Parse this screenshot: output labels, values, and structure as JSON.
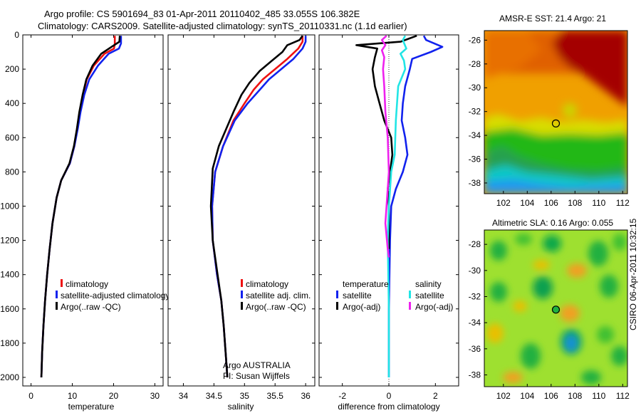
{
  "title_line1": "Argo profile: CS 5901694_83 01-Apr-2011 20110402_485 33.055S 106.382E",
  "title_line2": "Climatology: CARS2009. Satellite-adjusted climatology: synTS_20110331.nc (1.1d earlier)",
  "side_label": "CSIRO 06-Apr-2011 10:32:15",
  "colors": {
    "climatology": "#ee1111",
    "satellite": "#1122ee",
    "argo": "#000000",
    "sal_satellite": "#22e5e5",
    "sal_argo": "#ee22ee"
  },
  "chart_data": [
    {
      "id": "temperature",
      "type": "line",
      "xlabel": "temperature",
      "ylabel": "",
      "xlim": [
        -2,
        32
      ],
      "ylim": [
        2050,
        0
      ],
      "xticks": [
        0,
        10,
        20,
        30
      ],
      "yticks": [
        0,
        200,
        400,
        600,
        800,
        1000,
        1200,
        1400,
        1600,
        1800,
        2000
      ],
      "legend": [
        "climatology",
        "satellite-adjusted climatology",
        "Argo(..raw -QC)"
      ],
      "series": [
        {
          "name": "climatology",
          "color_key": "climatology",
          "x": [
            20.3,
            20.3,
            20.1,
            17.8,
            15.2,
            13.5,
            12.6,
            11.9,
            11.2,
            10.5,
            9.4,
            7.3,
            6.2,
            5.2,
            4.5,
            3.9,
            3.4,
            3.0,
            2.7,
            2.5
          ],
          "y": [
            5,
            50,
            80,
            110,
            180,
            260,
            350,
            450,
            550,
            650,
            750,
            850,
            950,
            1100,
            1250,
            1400,
            1550,
            1700,
            1850,
            2000
          ]
        },
        {
          "name": "satellite-adjusted climatology",
          "color_key": "satellite",
          "x": [
            21.8,
            21.8,
            21.3,
            18.8,
            16.2,
            14.1,
            12.9,
            12.0,
            11.3,
            10.5,
            9.4,
            7.3,
            6.2,
            5.2,
            4.5,
            3.9,
            3.4,
            3.0,
            2.7,
            2.5
          ],
          "y": [
            5,
            50,
            80,
            110,
            180,
            260,
            350,
            450,
            550,
            650,
            750,
            850,
            950,
            1100,
            1250,
            1400,
            1550,
            1700,
            1850,
            2000
          ]
        },
        {
          "name": "Argo(..raw -QC)",
          "color_key": "argo",
          "x": [
            21.5,
            21.4,
            19.5,
            17.0,
            14.9,
            13.4,
            12.5,
            11.7,
            11.1,
            10.4,
            9.3,
            7.3,
            6.2,
            5.2,
            4.5,
            3.9,
            3.4,
            3.0,
            2.7,
            2.5
          ],
          "y": [
            5,
            40,
            70,
            110,
            180,
            260,
            350,
            450,
            550,
            650,
            750,
            850,
            950,
            1100,
            1250,
            1400,
            1550,
            1700,
            1850,
            2000
          ]
        }
      ]
    },
    {
      "id": "salinity",
      "type": "line",
      "xlabel": "salinity",
      "xlim": [
        33.75,
        36.15
      ],
      "ylim": [
        2050,
        0
      ],
      "xticks": [
        34,
        34.5,
        35,
        35.5,
        36
      ],
      "xtick_labels": [
        "34",
        "34.5",
        "35",
        "35.5",
        "36"
      ],
      "legend": [
        "climatology",
        "satellite adj. clim.",
        "Argo(..raw -QC)"
      ],
      "annotation_line1": "Argo AUSTRALIA",
      "annotation_line2": "PI: Susan Wijffels",
      "series": [
        {
          "name": "climatology",
          "color_key": "climatology",
          "x": [
            35.95,
            35.95,
            35.88,
            35.7,
            35.5,
            35.3,
            35.15,
            35.0,
            34.82,
            34.65,
            34.52,
            34.47,
            34.48,
            34.55,
            34.62,
            34.66,
            34.69,
            34.71,
            34.72
          ],
          "y": [
            5,
            40,
            80,
            140,
            200,
            260,
            320,
            400,
            500,
            650,
            800,
            1000,
            1200,
            1400,
            1550,
            1700,
            1850,
            1950,
            2000
          ]
        },
        {
          "name": "satellite adj. clim.",
          "color_key": "satellite",
          "x": [
            36.0,
            36.0,
            35.95,
            35.8,
            35.6,
            35.4,
            35.25,
            35.05,
            34.84,
            34.65,
            34.52,
            34.47,
            34.48,
            34.55,
            34.62,
            34.66,
            34.69,
            34.71,
            34.72
          ],
          "y": [
            5,
            40,
            80,
            140,
            200,
            260,
            320,
            400,
            500,
            650,
            800,
            1000,
            1200,
            1400,
            1550,
            1700,
            1850,
            1950,
            2000
          ]
        },
        {
          "name": "Argo(..raw -QC)",
          "color_key": "argo",
          "x": [
            35.95,
            35.9,
            35.7,
            35.62,
            35.45,
            35.25,
            35.08,
            34.95,
            34.82,
            34.7,
            34.58,
            34.48,
            34.45,
            34.48,
            34.56,
            34.62,
            34.66,
            34.69,
            34.71,
            34.72
          ],
          "y": [
            5,
            30,
            60,
            100,
            150,
            210,
            280,
            350,
            450,
            550,
            650,
            780,
            1000,
            1200,
            1400,
            1550,
            1700,
            1850,
            1950,
            2000
          ]
        }
      ]
    },
    {
      "id": "difference",
      "type": "line",
      "xlabel": "difference from climatology",
      "xlim": [
        -3,
        3
      ],
      "ylim": [
        2050,
        0
      ],
      "xticks": [
        -2,
        0,
        2
      ],
      "legend_temperature_header": "temperature",
      "legend_salinity_header": "salinity",
      "legend_labels": [
        "satellite",
        "Argo(-adj)",
        "satellite",
        "Argo(-adj)"
      ],
      "series": [
        {
          "name": "temperature satellite",
          "color_key": "satellite",
          "x": [
            1.5,
            1.6,
            2.3,
            1.8,
            1.0,
            0.9,
            0.7,
            0.6,
            0.55,
            0.7,
            0.8,
            0.6,
            0.3,
            0.1,
            0.05,
            0.0,
            0.0
          ],
          "y": [
            5,
            30,
            70,
            100,
            140,
            200,
            300,
            400,
            500,
            600,
            700,
            800,
            900,
            1000,
            1200,
            1600,
            2000
          ]
        },
        {
          "name": "temperature Argo(-adj)",
          "color_key": "argo",
          "x": [
            1.2,
            0.5,
            -1.4,
            -0.5,
            -0.6,
            -0.7,
            -0.6,
            -0.4,
            -0.2,
            0.1,
            0.15,
            0.05,
            -0.05,
            0.0,
            0.0,
            0.0
          ],
          "y": [
            5,
            40,
            60,
            80,
            130,
            200,
            300,
            400,
            500,
            600,
            700,
            800,
            900,
            1000,
            1200,
            1250
          ]
        },
        {
          "name": "salinity satellite",
          "color_key": "sal_satellite",
          "x": [
            0.7,
            0.6,
            0.75,
            0.5,
            0.65,
            0.7,
            0.4,
            0.3,
            0.25,
            0.1,
            0.0,
            -0.05,
            0.0,
            0.0
          ],
          "y": [
            5,
            30,
            80,
            110,
            150,
            200,
            300,
            500,
            700,
            800,
            1000,
            1200,
            1600,
            2000
          ]
        },
        {
          "name": "salinity Argo(-adj)",
          "color_key": "sal_argo",
          "x": [
            -0.1,
            -0.3,
            -0.15,
            -0.3,
            -0.2,
            -0.25,
            -0.2,
            -0.15,
            -0.05,
            0.0,
            -0.15,
            -0.05,
            0.0
          ],
          "y": [
            5,
            30,
            60,
            90,
            130,
            200,
            300,
            450,
            600,
            800,
            1100,
            1250,
            1300
          ]
        }
      ]
    },
    {
      "id": "sst_map",
      "type": "heatmap",
      "title": "AMSR-E SST: 21.4 Argo: 21",
      "xlim": [
        100.4,
        112.4
      ],
      "ylim": [
        -38.9,
        -25.2
      ],
      "xticks": [
        102,
        104,
        106,
        108,
        110,
        112
      ],
      "yticks": [
        -26,
        -28,
        -30,
        -32,
        -34,
        -36,
        -38
      ],
      "marker": {
        "lon": 106.4,
        "lat": -33.0
      }
    },
    {
      "id": "sla_map",
      "type": "heatmap",
      "title": "Altimetric SLA: 0.16 Argo: 0.055",
      "xlim": [
        100.4,
        112.4
      ],
      "ylim": [
        -38.9,
        -26.9
      ],
      "xticks": [
        102,
        104,
        106,
        108,
        110,
        112
      ],
      "yticks": [
        -28,
        -30,
        -32,
        -34,
        -36,
        -38
      ],
      "marker": {
        "lon": 106.4,
        "lat": -33.0
      }
    }
  ]
}
